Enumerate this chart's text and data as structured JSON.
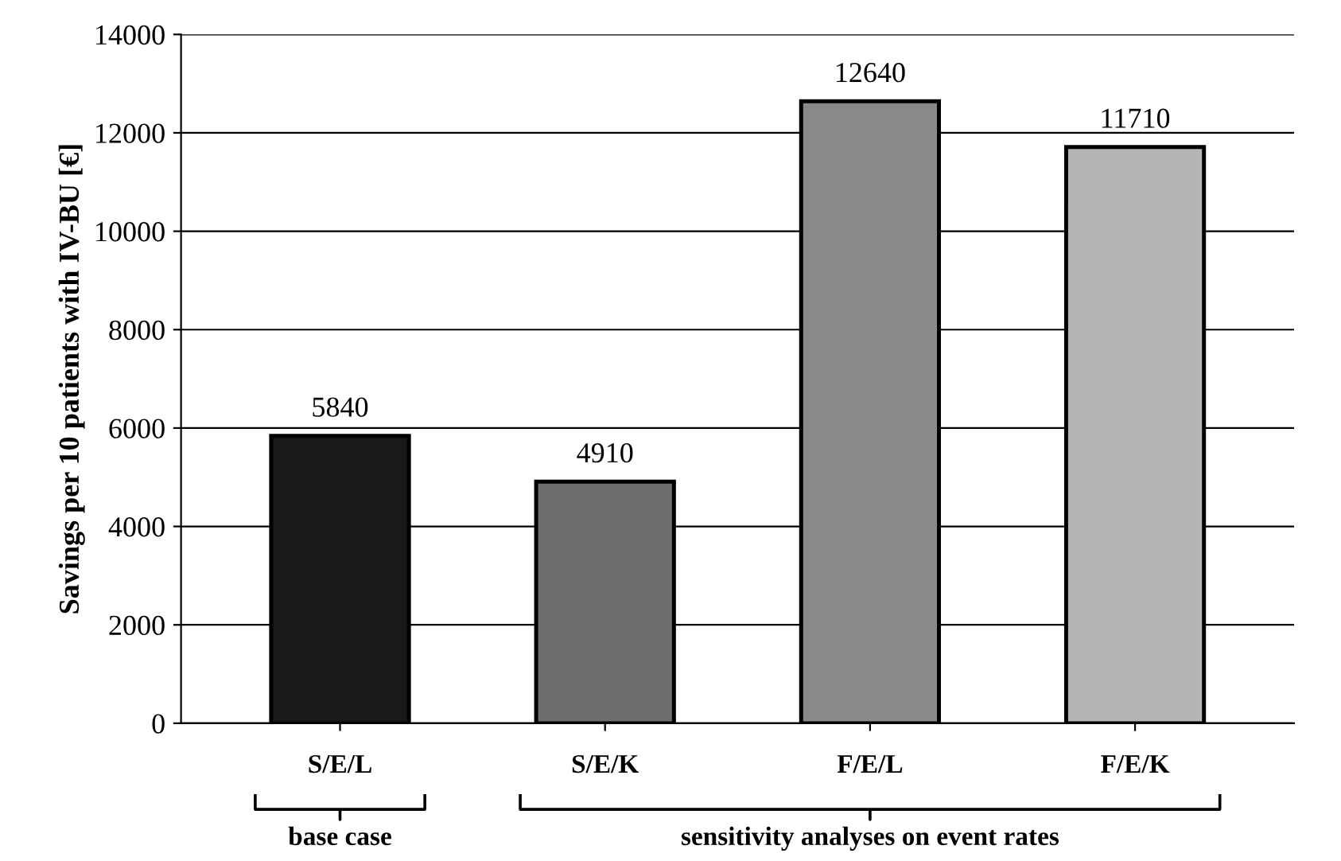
{
  "chart_data": {
    "type": "bar",
    "ylabel": "Savings per 10 patients with IV-BU [€]",
    "categories": [
      "S/E/L",
      "S/E/K",
      "F/E/L",
      "F/E/K"
    ],
    "values": [
      5840,
      4910,
      12640,
      11710
    ],
    "colors": [
      "#1a1a1a",
      "#6e6e6e",
      "#8a8a8a",
      "#b5b5b5"
    ],
    "ylim": [
      0,
      14000
    ],
    "yticks": [
      0,
      2000,
      4000,
      6000,
      8000,
      10000,
      12000,
      14000
    ],
    "grid": "y",
    "data_labels": true,
    "annotations": [
      "base case",
      "sensitivity analyses on event rates"
    ]
  }
}
